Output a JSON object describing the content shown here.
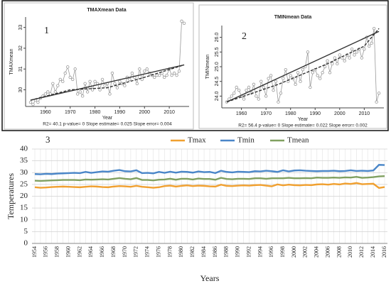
{
  "chart_data": [
    {
      "type": "scatter",
      "title": "TMAXmean  Data",
      "label": "1",
      "x_label": "Year",
      "y_label": "TMAXmean",
      "footnote": "R2= 40.1  p-value= 0  Slope estimate= 0.025  Slope error= 0.004",
      "x": [
        1954,
        1955,
        1956,
        1957,
        1958,
        1959,
        1960,
        1961,
        1962,
        1963,
        1964,
        1965,
        1966,
        1967,
        1968,
        1969,
        1970,
        1971,
        1972,
        1973,
        1974,
        1975,
        1976,
        1977,
        1978,
        1979,
        1980,
        1981,
        1982,
        1983,
        1984,
        1985,
        1986,
        1987,
        1988,
        1989,
        1990,
        1991,
        1992,
        1993,
        1994,
        1995,
        1996,
        1997,
        1998,
        1999,
        2000,
        2001,
        2002,
        2003,
        2004,
        2005,
        2006,
        2007,
        2008,
        2009,
        2010,
        2011,
        2012,
        2013,
        2014,
        2015,
        2016
      ],
      "series": [
        {
          "color": "#9a9a9a",
          "values": [
            29.4,
            29.3,
            29.5,
            29.4,
            29.6,
            29.7,
            29.8,
            29.9,
            29.8,
            30.3,
            29.9,
            30.2,
            30.5,
            30.4,
            30.8,
            31.1,
            30.6,
            30.5,
            31.0,
            29.8,
            29.9,
            29.7,
            30.3,
            29.9,
            30.4,
            30.0,
            30.4,
            30.3,
            30.0,
            30.5,
            30.2,
            30.3,
            29.8,
            30.8,
            30.3,
            30.1,
            30.4,
            30.3,
            30.2,
            30.6,
            30.5,
            30.8,
            30.6,
            30.3,
            31.0,
            30.5,
            30.9,
            31.0,
            30.8,
            30.7,
            30.6,
            30.7,
            30.7,
            30.8,
            30.6,
            30.7,
            31.0,
            30.7,
            30.8,
            30.7,
            30.9,
            33.3,
            33.2
          ]
        }
      ],
      "connect": true,
      "lines": [
        {
          "style": "solid",
          "color": "#333333",
          "x": [
            1954,
            2016
          ],
          "y": [
            29.5,
            31.2
          ]
        },
        {
          "style": "dashed",
          "color": "#333333",
          "x": [
            1954,
            1970,
            1985,
            2000,
            2016
          ],
          "y": [
            29.5,
            30.0,
            30.1,
            30.6,
            31.2
          ]
        }
      ],
      "xlim": [
        1952,
        2018
      ],
      "ylim": [
        29.2,
        33.5
      ],
      "xticks": [
        1960,
        1970,
        1980,
        1990,
        2000,
        2010
      ],
      "yticks": [
        30,
        31,
        32,
        33
      ]
    },
    {
      "type": "scatter",
      "title": "TMINmean  Data",
      "label": "2",
      "x_label": "Year",
      "y_label": "TMINmean",
      "footnote": "R2= 56.4  p-value= 0  Slope estimate= 0.022  Slope error= 0.002",
      "x": [
        1954,
        1955,
        1956,
        1957,
        1958,
        1959,
        1960,
        1961,
        1962,
        1963,
        1964,
        1965,
        1966,
        1967,
        1968,
        1969,
        1970,
        1971,
        1972,
        1973,
        1974,
        1975,
        1976,
        1977,
        1978,
        1979,
        1980,
        1981,
        1982,
        1983,
        1984,
        1985,
        1986,
        1987,
        1988,
        1989,
        1990,
        1991,
        1992,
        1993,
        1994,
        1995,
        1996,
        1997,
        1998,
        1999,
        2000,
        2001,
        2002,
        2003,
        2004,
        2005,
        2006,
        2007,
        2008,
        2009,
        2010,
        2011,
        2012,
        2013,
        2014,
        2015,
        2016
      ],
      "series": [
        {
          "color": "#9a9a9a",
          "values": [
            23.8,
            23.9,
            24.0,
            24.1,
            24.3,
            24.2,
            24.0,
            23.9,
            24.2,
            24.3,
            24.1,
            24.4,
            24.0,
            23.9,
            24.5,
            24.3,
            24.0,
            24.6,
            24.7,
            24.2,
            24.5,
            23.8,
            24.1,
            24.6,
            24.9,
            24.5,
            24.7,
            24.6,
            24.4,
            24.8,
            24.5,
            24.9,
            25.0,
            25.5,
            24.3,
            24.8,
            24.9,
            24.7,
            24.6,
            24.8,
            25.0,
            25.2,
            24.8,
            25.1,
            25.3,
            25.1,
            25.4,
            25.3,
            25.2,
            25.4,
            25.3,
            25.6,
            25.4,
            25.5,
            25.6,
            25.3,
            25.6,
            26.0,
            25.7,
            25.8,
            26.3,
            23.8,
            24.1
          ]
        }
      ],
      "connect": true,
      "lines": [
        {
          "style": "solid",
          "color": "#333333",
          "x": [
            1954,
            2016
          ],
          "y": [
            23.8,
            26.2
          ]
        },
        {
          "style": "dashed",
          "color": "#333333",
          "x": [
            1954,
            1975,
            1995,
            2010,
            2016
          ],
          "y": [
            23.8,
            24.4,
            25.1,
            25.7,
            26.3
          ]
        }
      ],
      "xlim": [
        1952,
        2018
      ],
      "ylim": [
        23.6,
        26.4
      ],
      "xticks": [
        1960,
        1970,
        1980,
        1990,
        2000,
        2010
      ],
      "yticks": [
        {
          "value": 24,
          "label": "24.0"
        },
        24.5,
        {
          "value": 25,
          "label": "25.0"
        },
        25.5,
        {
          "value": 26,
          "label": "26.0"
        }
      ]
    },
    {
      "type": "line",
      "label": "3",
      "x_label": "Years",
      "y_label": "Temperatures",
      "legend": "top",
      "grid": true,
      "categories": [
        "1954",
        null,
        "1956",
        null,
        "1958",
        null,
        "1960",
        null,
        "1962",
        null,
        "1964",
        null,
        "1966",
        null,
        "1968",
        null,
        "1970",
        null,
        "1972",
        null,
        "1974",
        null,
        "1976",
        null,
        "1978",
        null,
        "1980",
        null,
        "1982",
        null,
        "1984",
        null,
        "1986",
        null,
        "1988",
        null,
        "1990",
        null,
        "1992",
        null,
        "1994",
        null,
        "1996",
        null,
        "1998",
        null,
        "2000",
        null,
        "2002",
        null,
        "2004",
        null,
        "2006",
        null,
        "2008",
        null,
        "2010",
        null,
        "2012",
        null,
        "2014",
        null,
        "2016"
      ],
      "series": [
        {
          "name": "Tmax",
          "color": "#f0a030",
          "values": [
            23.8,
            23.6,
            23.7,
            23.9,
            24.0,
            24.1,
            24.0,
            23.9,
            23.8,
            24.0,
            24.2,
            24.1,
            23.9,
            23.8,
            24.1,
            24.3,
            24.2,
            24.0,
            24.4,
            24.0,
            23.8,
            23.6,
            23.8,
            24.3,
            24.5,
            24.1,
            24.4,
            24.6,
            24.3,
            24.5,
            24.4,
            24.2,
            24.1,
            24.9,
            24.4,
            24.3,
            24.5,
            24.6,
            24.5,
            24.7,
            24.8,
            24.5,
            24.2,
            25.0,
            24.6,
            24.9,
            24.7,
            24.6,
            24.8,
            24.7,
            25.0,
            25.1,
            24.9,
            25.2,
            25.0,
            25.4,
            25.2,
            25.6,
            25.1,
            25.2,
            25.3,
            23.5,
            23.9
          ]
        },
        {
          "name": "Tmin",
          "color": "#4a86c8",
          "values": [
            29.4,
            29.3,
            29.5,
            29.4,
            29.6,
            29.7,
            29.8,
            29.9,
            29.8,
            30.3,
            29.9,
            30.2,
            30.5,
            30.4,
            30.8,
            31.1,
            30.6,
            30.5,
            31.0,
            29.8,
            29.9,
            29.7,
            30.3,
            29.9,
            30.4,
            30.0,
            30.4,
            30.3,
            30.0,
            30.5,
            30.2,
            30.3,
            29.8,
            30.8,
            30.3,
            30.1,
            30.4,
            30.3,
            30.2,
            30.6,
            30.5,
            30.8,
            30.6,
            30.3,
            31.0,
            30.5,
            30.9,
            31.0,
            30.8,
            30.7,
            30.6,
            30.7,
            30.7,
            30.8,
            30.6,
            30.7,
            31.0,
            30.7,
            30.8,
            30.7,
            30.9,
            33.3,
            33.2
          ]
        },
        {
          "name": "Tmean",
          "color": "#80a060",
          "values": [
            26.6,
            26.5,
            26.6,
            26.7,
            26.8,
            26.9,
            26.9,
            26.9,
            26.8,
            27.1,
            27.0,
            27.1,
            27.2,
            27.1,
            27.4,
            27.7,
            27.4,
            27.2,
            27.7,
            26.9,
            26.9,
            26.7,
            27.0,
            27.1,
            27.4,
            27.0,
            27.4,
            27.4,
            27.1,
            27.5,
            27.3,
            27.3,
            27.0,
            27.8,
            27.3,
            27.2,
            27.4,
            27.4,
            27.3,
            27.6,
            27.6,
            27.4,
            27.6,
            27.6,
            27.6,
            27.8,
            27.6,
            27.6,
            27.7,
            27.6,
            27.9,
            27.8,
            27.8,
            27.9,
            27.8,
            28.0,
            27.9,
            28.2,
            27.8,
            27.9,
            28.1,
            28.4,
            28.5
          ]
        }
      ],
      "ylim": [
        0,
        40
      ],
      "yticks": [
        0,
        5,
        10,
        15,
        20,
        25,
        30,
        35,
        40
      ]
    }
  ]
}
